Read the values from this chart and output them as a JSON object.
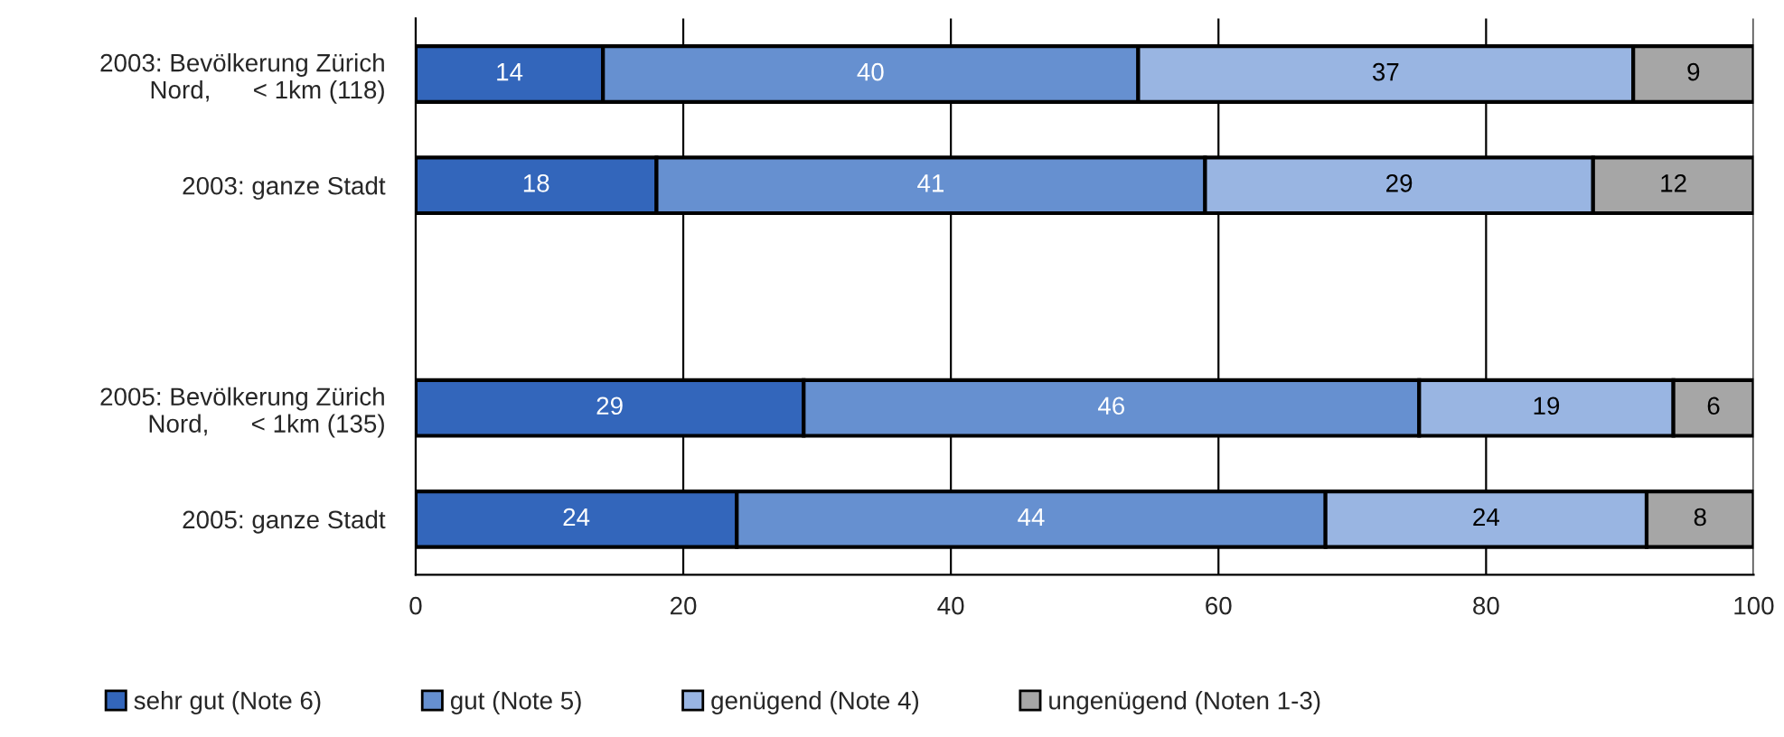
{
  "chart_data": {
    "type": "bar",
    "orientation": "horizontal",
    "stacked": true,
    "data_labels": true,
    "categories": [
      "2003: Bevölkerung Zürich\nNord,      < 1km (118)",
      "2003: ganze Stadt",
      null,
      "2005: Bevölkerung Zürich\nNord,      < 1km (135)",
      "2005: ganze Stadt"
    ],
    "series": [
      {
        "name": "sehr gut (Note 6)",
        "color": "#3366bb",
        "values": [
          14,
          18,
          null,
          29,
          24
        ]
      },
      {
        "name": "gut (Note 5)",
        "color": "#6690d0",
        "values": [
          40,
          41,
          null,
          46,
          44
        ]
      },
      {
        "name": "genügend (Note 4)",
        "color": "#99b5e2",
        "values": [
          37,
          29,
          null,
          19,
          24
        ]
      },
      {
        "name": "ungenügend (Noten 1-3)",
        "color": "#a6a6a6",
        "values": [
          9,
          12,
          null,
          6,
          8
        ]
      }
    ],
    "xlim": [
      0,
      100
    ],
    "xticks": [
      0,
      20,
      40,
      60,
      80,
      100
    ],
    "grid": "x",
    "legend": "bottom"
  }
}
